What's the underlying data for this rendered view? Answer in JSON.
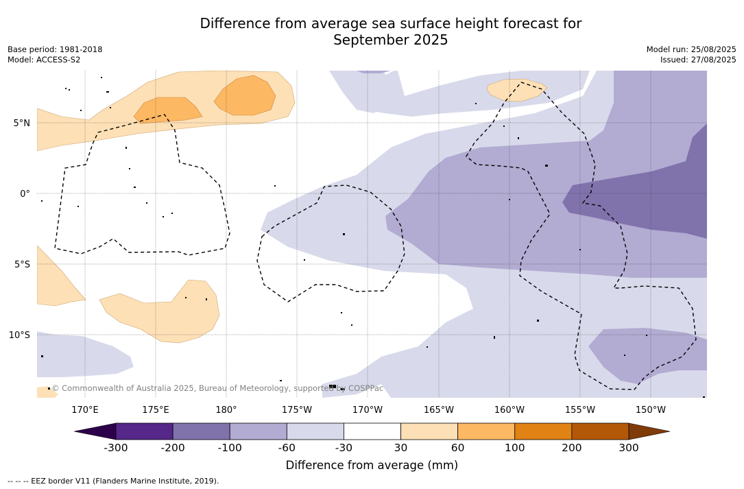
{
  "title_line1": "Difference from average sea surface height forecast for",
  "title_line2": "September 2025",
  "base_period": "Base period: 1981-2018",
  "model": "Model: ACCESS-S2",
  "model_run": "Model run: 25/08/2025",
  "issued": "Issued: 27/08/2025",
  "lat_labels": [
    "5°N",
    "0°",
    "5°S",
    "10°S"
  ],
  "lon_labels": [
    "170°E",
    "175°E",
    "180°",
    "175°W",
    "170°W",
    "165°W",
    "160°W",
    "155°W",
    "150°W"
  ],
  "copyright": "© Commonwealth of Australia 2025, Bureau of Meteorology, supported by COSPPac",
  "colorbar": {
    "ticks": [
      "-300",
      "-200",
      "-100",
      "-60",
      "-30",
      "30",
      "60",
      "100",
      "200",
      "300"
    ],
    "colors": [
      "#542788",
      "#8073ac",
      "#b2abd2",
      "#d8daeb",
      "#ffffff",
      "#fee0b6",
      "#fdb863",
      "#e08214",
      "#b35806"
    ],
    "under_color": "#2d004b",
    "over_color": "#7f3b08",
    "label": "Difference from average (mm)"
  },
  "footnote": "--  --  -- EEZ border V11 (Flanders Marine Institute, 2019).",
  "map_colors": {
    "light_purple": "#d8daeb",
    "mid_purple": "#b2abd2",
    "dark_purple": "#8073ac",
    "light_orange": "#fee0b6",
    "mid_orange": "#fdb863"
  }
}
